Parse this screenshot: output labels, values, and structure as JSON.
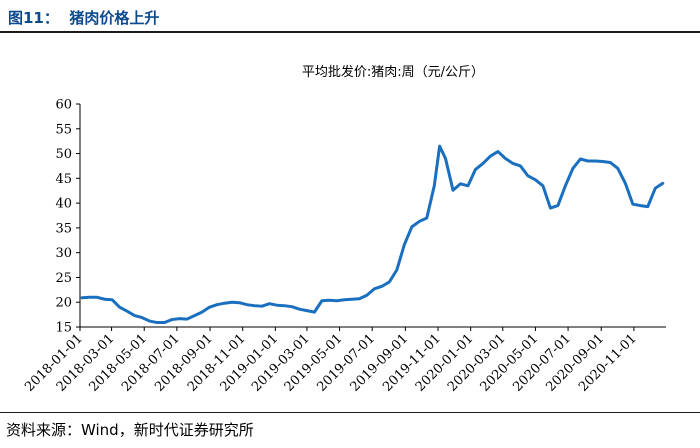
{
  "figure": {
    "title": "图11：  猪肉价格上升",
    "source": "资料来源：Wind，新时代证券研究所"
  },
  "colors": {
    "line": "#1a6fbf",
    "title": "#0b4a8c"
  },
  "chart_data": {
    "type": "line",
    "title": "平均批发价:猪肉:周（元/公斤）",
    "xlabel": "",
    "ylabel": "",
    "ylim": [
      15,
      60
    ],
    "yticks": [
      15,
      20,
      25,
      30,
      35,
      40,
      45,
      50,
      55,
      60
    ],
    "xlim": [
      "2018-01-01",
      "2020-12-31"
    ],
    "xticks": [
      "2018-01-01",
      "2018-03-01",
      "2018-05-01",
      "2018-07-01",
      "2018-09-01",
      "2018-11-01",
      "2019-01-01",
      "2019-03-01",
      "2019-05-01",
      "2019-07-01",
      "2019-09-01",
      "2019-11-01",
      "2020-01-01",
      "2020-03-01",
      "2020-05-01",
      "2020-07-01",
      "2020-09-01",
      "2020-11-01"
    ],
    "grid": false,
    "legend": "none",
    "series": [
      {
        "name": "",
        "points": [
          [
            "2018-01-05",
            20.9
          ],
          [
            "2018-01-19",
            21.0
          ],
          [
            "2018-02-02",
            21.0
          ],
          [
            "2018-02-16",
            20.6
          ],
          [
            "2018-03-02",
            20.5
          ],
          [
            "2018-03-16",
            19.0
          ],
          [
            "2018-03-30",
            18.2
          ],
          [
            "2018-04-13",
            17.3
          ],
          [
            "2018-04-27",
            16.9
          ],
          [
            "2018-05-11",
            16.2
          ],
          [
            "2018-05-25",
            15.9
          ],
          [
            "2018-06-08",
            15.9
          ],
          [
            "2018-06-22",
            16.5
          ],
          [
            "2018-07-06",
            16.7
          ],
          [
            "2018-07-20",
            16.6
          ],
          [
            "2018-08-03",
            17.3
          ],
          [
            "2018-08-17",
            18.0
          ],
          [
            "2018-08-31",
            19.0
          ],
          [
            "2018-09-14",
            19.5
          ],
          [
            "2018-09-28",
            19.8
          ],
          [
            "2018-10-12",
            20.0
          ],
          [
            "2018-10-26",
            19.9
          ],
          [
            "2018-11-09",
            19.5
          ],
          [
            "2018-11-23",
            19.3
          ],
          [
            "2018-12-07",
            19.2
          ],
          [
            "2018-12-21",
            19.7
          ],
          [
            "2019-01-04",
            19.4
          ],
          [
            "2019-01-18",
            19.3
          ],
          [
            "2019-02-01",
            19.1
          ],
          [
            "2019-02-15",
            18.6
          ],
          [
            "2019-03-01",
            18.3
          ],
          [
            "2019-03-15",
            18.0
          ],
          [
            "2019-03-29",
            20.3
          ],
          [
            "2019-04-12",
            20.4
          ],
          [
            "2019-04-26",
            20.3
          ],
          [
            "2019-05-10",
            20.5
          ],
          [
            "2019-05-24",
            20.6
          ],
          [
            "2019-06-07",
            20.7
          ],
          [
            "2019-06-21",
            21.4
          ],
          [
            "2019-07-05",
            22.7
          ],
          [
            "2019-07-19",
            23.2
          ],
          [
            "2019-08-02",
            24.1
          ],
          [
            "2019-08-16",
            26.5
          ],
          [
            "2019-08-30",
            31.6
          ],
          [
            "2019-09-13",
            35.2
          ],
          [
            "2019-09-27",
            36.3
          ],
          [
            "2019-10-11",
            37.0
          ],
          [
            "2019-10-25",
            43.5
          ],
          [
            "2019-11-04",
            51.5
          ],
          [
            "2019-11-15",
            49.0
          ],
          [
            "2019-11-29",
            42.6
          ],
          [
            "2019-12-13",
            43.9
          ],
          [
            "2019-12-27",
            43.5
          ],
          [
            "2020-01-10",
            46.8
          ],
          [
            "2020-01-24",
            48.0
          ],
          [
            "2020-02-07",
            49.5
          ],
          [
            "2020-02-21",
            50.4
          ],
          [
            "2020-03-06",
            49.0
          ],
          [
            "2020-03-20",
            48.0
          ],
          [
            "2020-04-03",
            47.5
          ],
          [
            "2020-04-17",
            45.5
          ],
          [
            "2020-05-01",
            44.7
          ],
          [
            "2020-05-15",
            43.5
          ],
          [
            "2020-05-29",
            39.0
          ],
          [
            "2020-06-12",
            39.5
          ],
          [
            "2020-06-26",
            43.5
          ],
          [
            "2020-07-10",
            47.0
          ],
          [
            "2020-07-24",
            48.9
          ],
          [
            "2020-08-07",
            48.5
          ],
          [
            "2020-08-21",
            48.5
          ],
          [
            "2020-09-04",
            48.4
          ],
          [
            "2020-09-18",
            48.2
          ],
          [
            "2020-10-02",
            47.0
          ],
          [
            "2020-10-16",
            44.0
          ],
          [
            "2020-10-30",
            39.8
          ],
          [
            "2020-11-13",
            39.5
          ],
          [
            "2020-11-27",
            39.3
          ],
          [
            "2020-12-11",
            43.0
          ],
          [
            "2020-12-25",
            44.0
          ]
        ]
      }
    ]
  }
}
